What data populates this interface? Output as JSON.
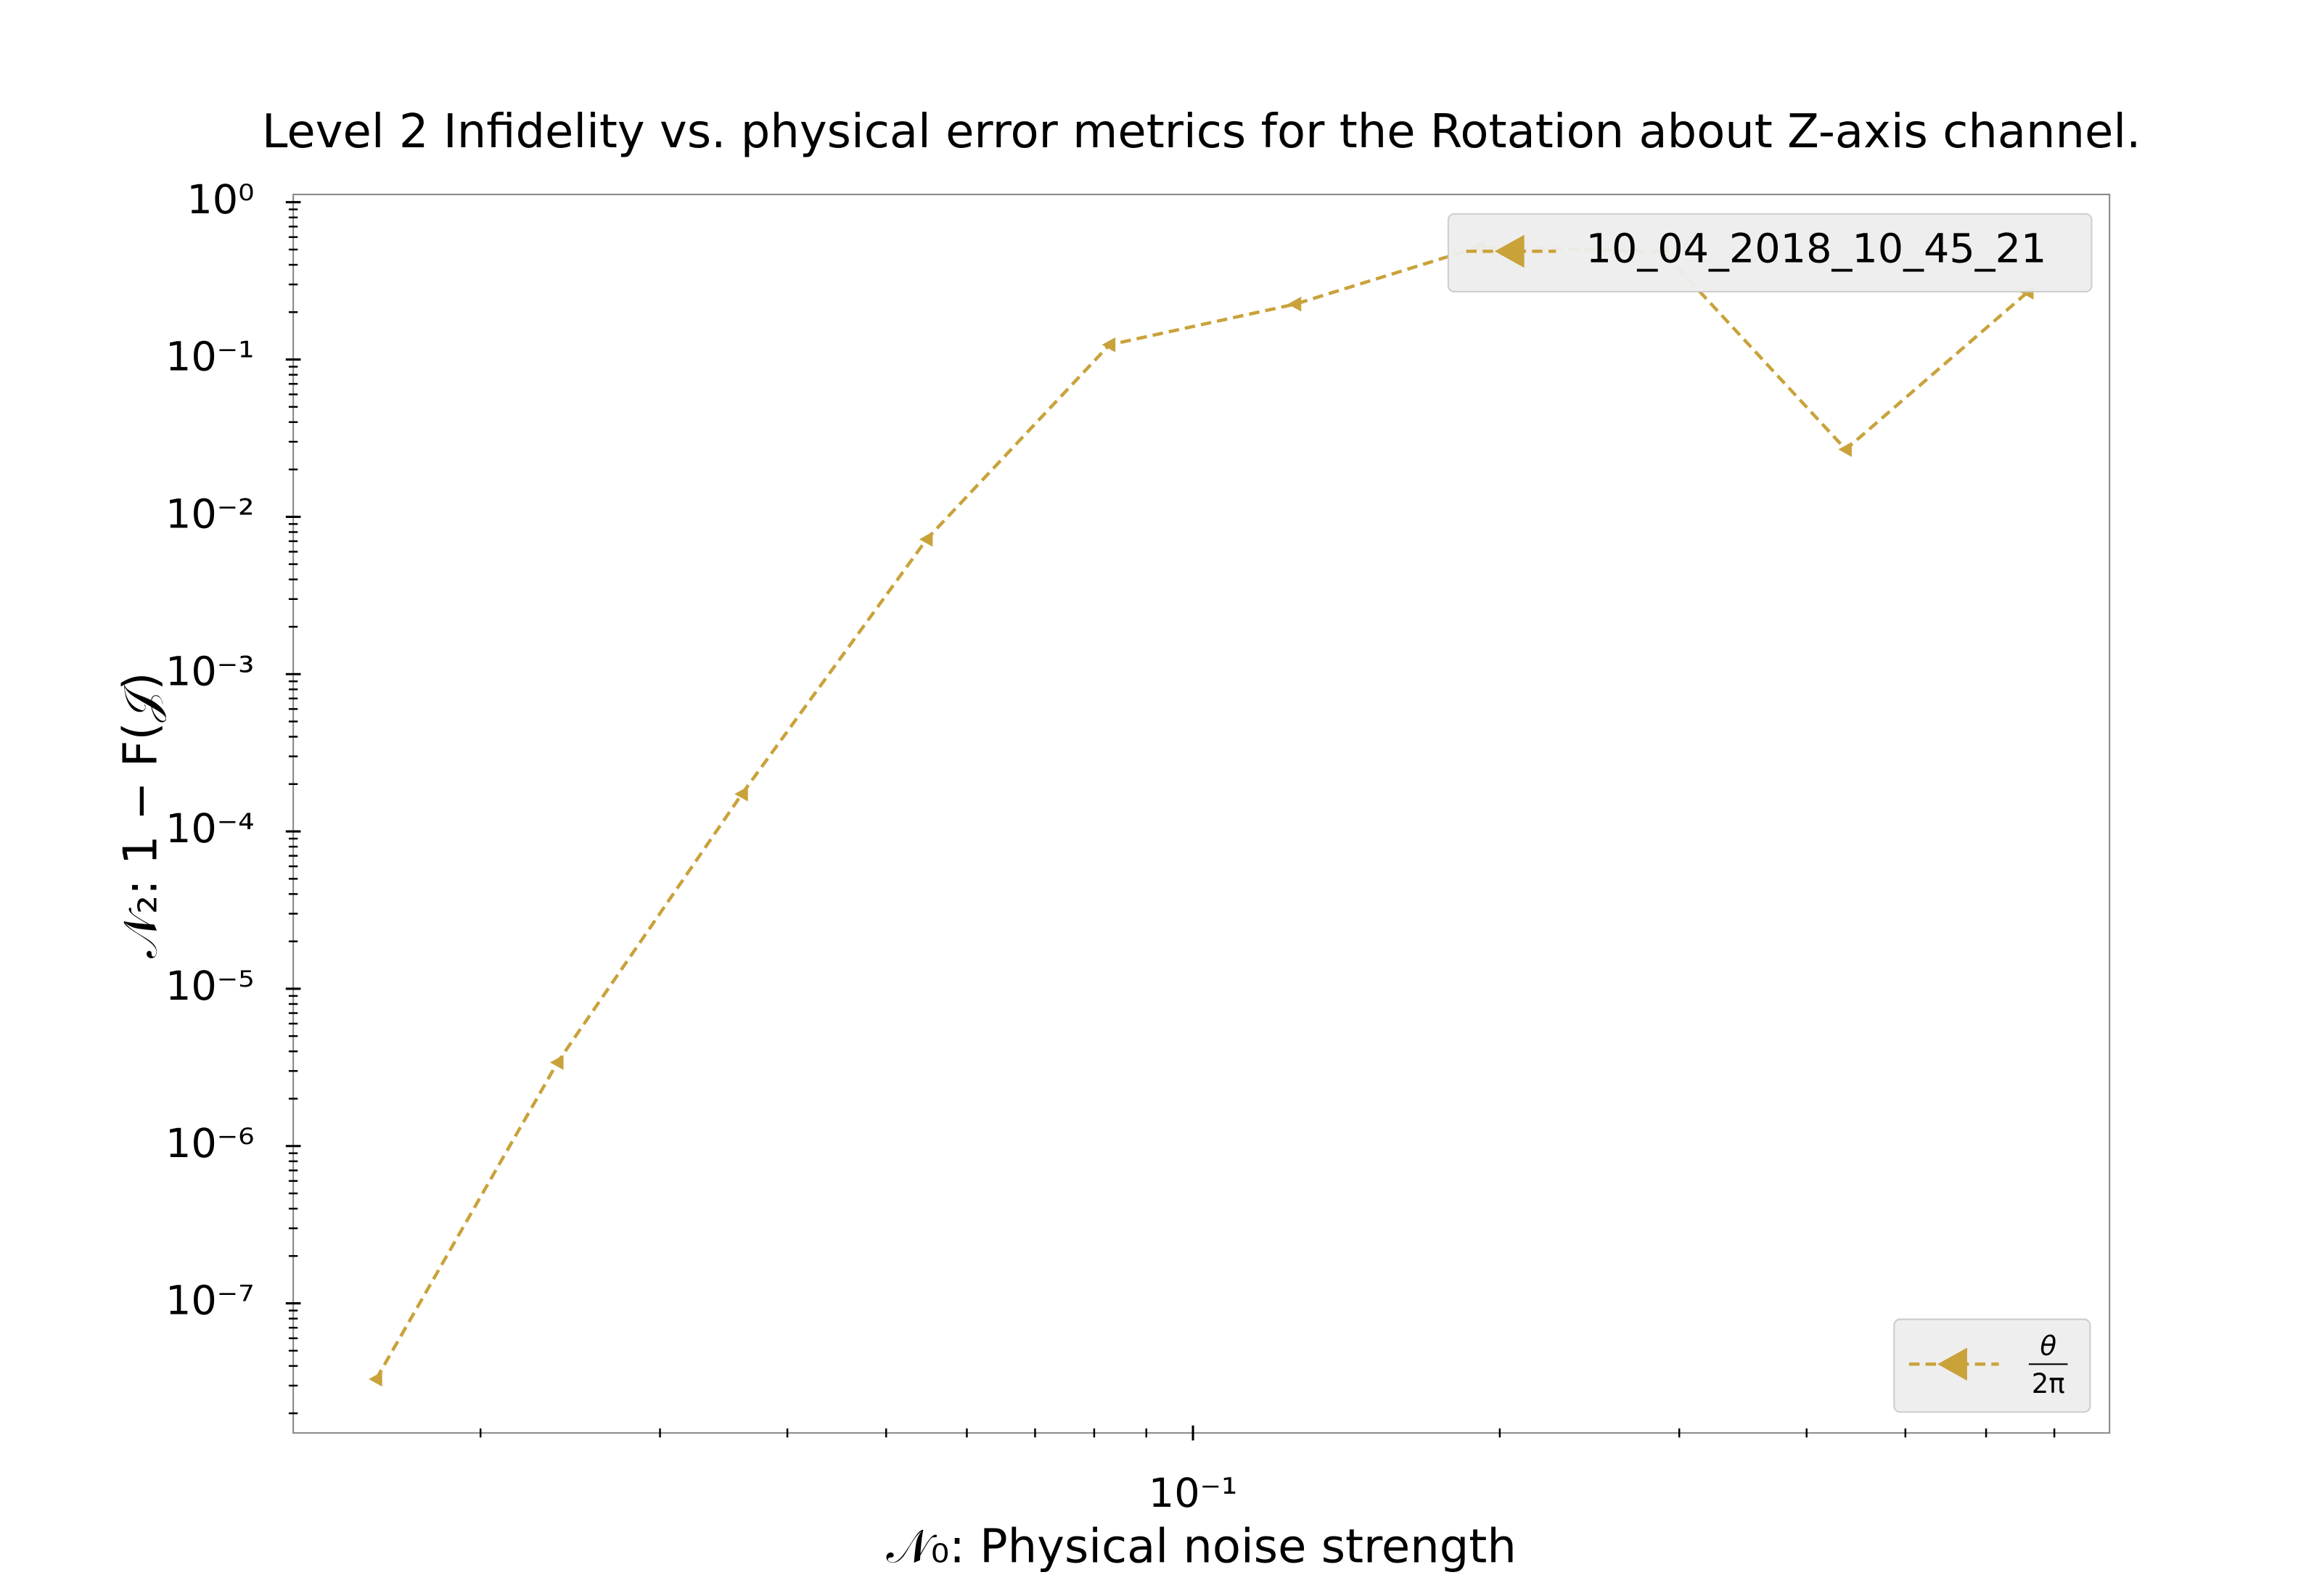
{
  "chart_data": {
    "type": "line",
    "title": "Level 2 Infidelity vs. physical error metrics for the Rotation about Z-axis channel.",
    "xlabel": "𝒩₀: Physical noise strength",
    "ylabel": "𝒩₂: 1 − F(𝒥)",
    "xscale": "log",
    "yscale": "log",
    "xlim": [
      0.0131,
      0.793
    ],
    "ylim": [
      1.5e-08,
      1.12
    ],
    "xticks": [
      {
        "value": 0.1,
        "label": "10⁻¹"
      }
    ],
    "xminorticks": [
      0.02,
      0.03,
      0.04,
      0.05,
      0.06,
      0.07,
      0.08,
      0.09,
      0.2,
      0.3,
      0.4,
      0.5,
      0.6,
      0.7
    ],
    "yticks": [
      {
        "value": 1,
        "label": "10⁰"
      },
      {
        "value": 0.1,
        "label": "10⁻¹"
      },
      {
        "value": 0.01,
        "label": "10⁻²"
      },
      {
        "value": 0.001,
        "label": "10⁻³"
      },
      {
        "value": 0.0001,
        "label": "10⁻⁴"
      },
      {
        "value": 1e-05,
        "label": "10⁻⁵"
      },
      {
        "value": 1e-06,
        "label": "10⁻⁶"
      },
      {
        "value": 1e-07,
        "label": "10⁻⁷"
      }
    ],
    "yminorticks": [
      2e-08,
      3e-08,
      4e-08,
      5e-08,
      6e-08,
      7e-08,
      8e-08,
      9e-08,
      2e-07,
      3e-07,
      4e-07,
      5e-07,
      6e-07,
      7e-07,
      8e-07,
      9e-07,
      2e-06,
      3e-06,
      4e-06,
      5e-06,
      6e-06,
      7e-06,
      8e-06,
      9e-06,
      2e-05,
      3e-05,
      4e-05,
      5e-05,
      6e-05,
      7e-05,
      8e-05,
      9e-05,
      0.0002,
      0.0003,
      0.0004,
      0.0005,
      0.0006,
      0.0007,
      0.0008,
      0.0009,
      0.002,
      0.003,
      0.004,
      0.005,
      0.006,
      0.007,
      0.008,
      0.009,
      0.02,
      0.03,
      0.04,
      0.05,
      0.06,
      0.07,
      0.08,
      0.09,
      0.2,
      0.3,
      0.4,
      0.5,
      0.6,
      0.7,
      0.8,
      0.9
    ],
    "legend": "upper right",
    "series": [
      {
        "name": "10_04_2018_10_45_21",
        "color": "#c9a23a",
        "x": [
          0.0158,
          0.0238,
          0.0361,
          0.0548,
          0.0828,
          0.126,
          0.191,
          0.289,
          0.437,
          0.659
        ],
        "values": [
          3.3e-08,
          3.4e-06,
          0.000173,
          0.0072,
          0.124,
          0.225,
          0.52,
          0.485,
          0.0268,
          0.268
        ]
      }
    ],
    "marker_legend": {
      "numerator": "θ",
      "denominator": "2π",
      "corner": "lower right"
    }
  }
}
